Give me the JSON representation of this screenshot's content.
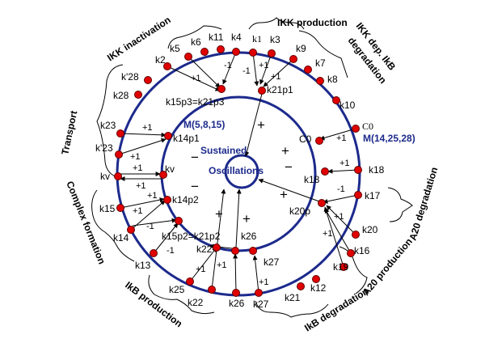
{
  "outer_labels": {
    "k5": "k5",
    "k6": "k6",
    "k11": "k11",
    "k4": "k4",
    "k1": "k1",
    "k3": "k3",
    "k9": "k9",
    "k7": "k7",
    "k8": "k8",
    "k10": "k10",
    "k2": "k2",
    "k28p": "k'28",
    "k28": "k28",
    "k23": "k23",
    "k23p": "k'23",
    "kv": "kv",
    "k15": "k15",
    "k14": "k14",
    "k13": "k13",
    "k25": "k25",
    "k22": "k22",
    "k26": "k26",
    "k27": "k27",
    "k21": "k21",
    "k12": "k12",
    "k19": "k19",
    "k16": "k16",
    "k20": "k20",
    "k17": "k17",
    "k18": "k18",
    "c0": "C0"
  },
  "inner_labels": {
    "k15p3": "k15p3=k21p3",
    "k21p1": "k21p1",
    "k14p1": "k14p1",
    "kv": "kv",
    "k14p2": "k14p2",
    "k15p2": "k15p2=k21p2",
    "k22": "k22",
    "k26": "k26",
    "k27": "k27",
    "k20p": "k20p",
    "k18": "k18",
    "c0": "C0"
  },
  "regions": {
    "ikk_production": "IKK production",
    "ikk_inactivation": "IKK inactivation",
    "ikk_dep_1": "IKK dep. IkB",
    "ikk_dep_2": "degradation",
    "transport": "Transport",
    "complex_formation": "Complex formation",
    "ikb_production": "IkB production",
    "ikb_degradation": "IkB degradation",
    "a20_production": "A20 production",
    "a20_degradation": "A20 degradation"
  },
  "modules": {
    "inner": "M(5,8,15)",
    "outer": "M(14,25,28)"
  },
  "center": {
    "line1": "Sustained",
    "line2": "Oscillations"
  },
  "signs": {
    "p1": "+1",
    "m1": "-1",
    "plus": "+",
    "minus": "−"
  },
  "colors": {
    "ring": "#1c2a8c",
    "node": "#e00000"
  }
}
